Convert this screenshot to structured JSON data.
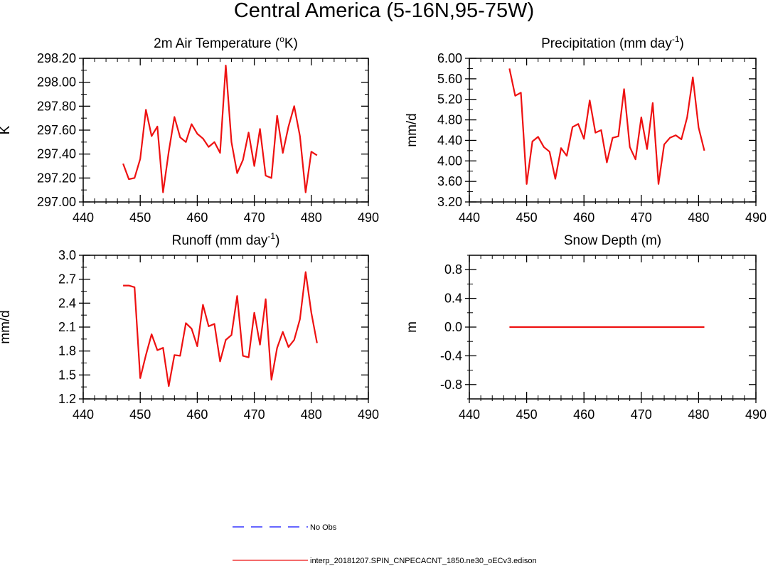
{
  "title": "Central America (5-16N,95-75W)",
  "legend": [
    {
      "label": "No Obs",
      "color": "#3333ff",
      "style": "dashed"
    },
    {
      "label": "interp_20181207.SPIN_CNPECACNT_1850.ne30_oECv3.edison",
      "color": "#ee1111",
      "style": "solid"
    }
  ],
  "chart_data": [
    {
      "type": "line",
      "title": "2m Air Temperature (°K)",
      "title_main": "2m Air Temperature (",
      "title_sup": "o",
      "title_end": "K)",
      "ylabel": "K",
      "xlim": [
        440,
        490
      ],
      "ylim": [
        297.0,
        298.2
      ],
      "xticks": [
        "440",
        "450",
        "460",
        "470",
        "480",
        "490"
      ],
      "yticks": [
        "297.00",
        "297.20",
        "297.40",
        "297.60",
        "297.80",
        "298.00",
        "298.20"
      ],
      "x": [
        447,
        448,
        449,
        450,
        451,
        452,
        453,
        454,
        455,
        456,
        457,
        458,
        459,
        460,
        461,
        462,
        463,
        464,
        465,
        466,
        467,
        468,
        469,
        470,
        471,
        472,
        473,
        474,
        475,
        476,
        477,
        478,
        479,
        480,
        481
      ],
      "series": [
        {
          "name": "interp_20181207.SPIN_CNPECACNT_1850.ne30_oECv3.edison",
          "values": [
            297.32,
            297.19,
            297.2,
            297.36,
            297.77,
            297.55,
            297.63,
            297.08,
            297.42,
            297.71,
            297.54,
            297.5,
            297.65,
            297.57,
            297.53,
            297.46,
            297.5,
            297.41,
            298.14,
            297.5,
            297.24,
            297.35,
            297.58,
            297.3,
            297.61,
            297.22,
            297.2,
            297.72,
            297.41,
            297.63,
            297.8,
            297.55,
            297.08,
            297.42,
            297.39
          ]
        }
      ]
    },
    {
      "type": "line",
      "title": "Precipitation (mm day-1)",
      "title_main": "Precipitation (mm day",
      "title_sup": "-1",
      "title_end": ")",
      "ylabel": "mm/d",
      "xlim": [
        440,
        490
      ],
      "ylim": [
        3.2,
        6.0
      ],
      "xticks": [
        "440",
        "450",
        "460",
        "470",
        "480",
        "490"
      ],
      "yticks": [
        "3.20",
        "3.60",
        "4.00",
        "4.40",
        "4.80",
        "5.20",
        "5.60",
        "6.00"
      ],
      "x": [
        447,
        448,
        449,
        450,
        451,
        452,
        453,
        454,
        455,
        456,
        457,
        458,
        459,
        460,
        461,
        462,
        463,
        464,
        465,
        466,
        467,
        468,
        469,
        470,
        471,
        472,
        473,
        474,
        475,
        476,
        477,
        478,
        479,
        480,
        481
      ],
      "series": [
        {
          "name": "interp_20181207.SPIN_CNPECACNT_1850.ne30_oECv3.edison",
          "values": [
            5.8,
            5.27,
            5.33,
            3.55,
            4.38,
            4.47,
            4.27,
            4.18,
            3.65,
            4.25,
            4.1,
            4.66,
            4.72,
            4.43,
            5.18,
            4.55,
            4.6,
            3.97,
            4.45,
            4.48,
            5.4,
            4.27,
            4.03,
            4.85,
            4.23,
            5.13,
            3.55,
            4.32,
            4.45,
            4.5,
            4.42,
            4.85,
            5.63,
            4.65,
            4.2
          ]
        }
      ]
    },
    {
      "type": "line",
      "title": "Runoff (mm day-1)",
      "title_main": "Runoff (mm day",
      "title_sup": "-1",
      "title_end": ")",
      "ylabel": "mm/d",
      "xlim": [
        440,
        490
      ],
      "ylim": [
        1.2,
        3.0
      ],
      "xticks": [
        "440",
        "450",
        "460",
        "470",
        "480",
        "490"
      ],
      "yticks": [
        "1.2",
        "1.5",
        "1.8",
        "2.1",
        "2.4",
        "2.7",
        "3.0"
      ],
      "x": [
        447,
        448,
        449,
        450,
        451,
        452,
        453,
        454,
        455,
        456,
        457,
        458,
        459,
        460,
        461,
        462,
        463,
        464,
        465,
        466,
        467,
        468,
        469,
        470,
        471,
        472,
        473,
        474,
        475,
        476,
        477,
        478,
        479,
        480,
        481
      ],
      "series": [
        {
          "name": "interp_20181207.SPIN_CNPECACNT_1850.ne30_oECv3.edison",
          "values": [
            2.62,
            2.62,
            2.6,
            1.46,
            1.75,
            2.01,
            1.81,
            1.84,
            1.36,
            1.75,
            1.74,
            2.15,
            2.08,
            1.86,
            2.38,
            2.11,
            2.14,
            1.67,
            1.94,
            2.0,
            2.49,
            1.74,
            1.72,
            2.28,
            1.88,
            2.45,
            1.44,
            1.84,
            2.04,
            1.85,
            1.94,
            2.2,
            2.79,
            2.28,
            1.9
          ]
        }
      ]
    },
    {
      "type": "line",
      "title": "Snow Depth (m)",
      "title_main": "Snow Depth (m)",
      "title_sup": "",
      "title_end": "",
      "ylabel": "m",
      "xlim": [
        440,
        490
      ],
      "ylim": [
        -1.0,
        1.0
      ],
      "xticks": [
        "440",
        "450",
        "460",
        "470",
        "480",
        "490"
      ],
      "yticks": [
        "-0.8",
        "-0.4",
        "0.0",
        "0.4",
        "0.8"
      ],
      "ytick_values": [
        -0.8,
        -0.4,
        0.0,
        0.4,
        0.8
      ],
      "x": [
        447,
        448,
        449,
        450,
        451,
        452,
        453,
        454,
        455,
        456,
        457,
        458,
        459,
        460,
        461,
        462,
        463,
        464,
        465,
        466,
        467,
        468,
        469,
        470,
        471,
        472,
        473,
        474,
        475,
        476,
        477,
        478,
        479,
        480,
        481
      ],
      "series": [
        {
          "name": "interp_20181207.SPIN_CNPECACNT_1850.ne30_oECv3.edison",
          "values": [
            0,
            0,
            0,
            0,
            0,
            0,
            0,
            0,
            0,
            0,
            0,
            0,
            0,
            0,
            0,
            0,
            0,
            0,
            0,
            0,
            0,
            0,
            0,
            0,
            0,
            0,
            0,
            0,
            0,
            0,
            0,
            0,
            0,
            0,
            0
          ]
        }
      ]
    }
  ]
}
